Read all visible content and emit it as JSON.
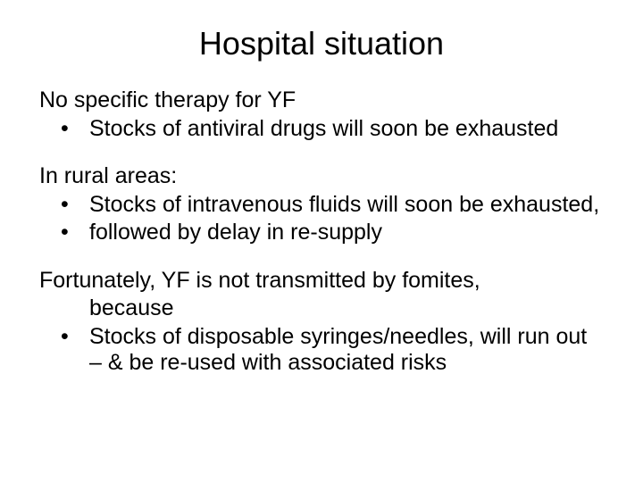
{
  "title": "Hospital situation",
  "section1": {
    "lead": "No specific therapy for YF",
    "bullets": [
      "Stocks of antiviral drugs will soon be exhausted"
    ]
  },
  "section2": {
    "lead": "In rural areas:",
    "bullets": [
      "Stocks of intravenous fluids will soon be exhausted,",
      "followed by delay in re-supply"
    ]
  },
  "section3": {
    "lead": "Fortunately, YF is not transmitted by fomites,",
    "cont": "because",
    "bullets": [
      "Stocks of disposable syringes/needles, will run out – & be re-used with associated risks"
    ]
  },
  "style": {
    "background_color": "#ffffff",
    "text_color": "#000000",
    "title_fontsize": 36,
    "body_fontsize": 25,
    "font_family": "Arial"
  }
}
